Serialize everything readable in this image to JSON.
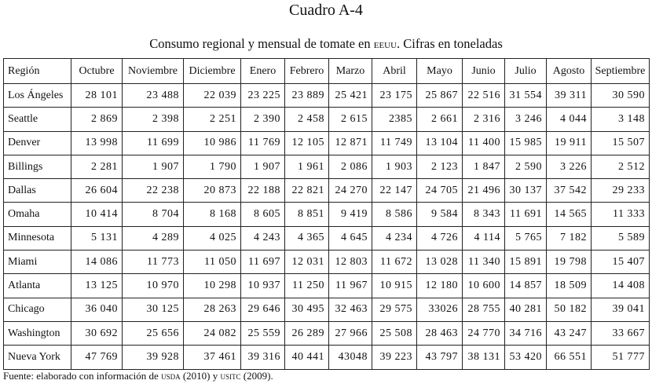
{
  "title": "Cuadro A-4",
  "subtitle": {
    "pre": "Consumo regional y mensual de tomate en ",
    "country": "EEUU",
    "post": ". Cifras en toneladas"
  },
  "table": {
    "headers": [
      "Región",
      "Octubre",
      "Noviembre",
      "Diciembre",
      "Enero",
      "Febrero",
      "Marzo",
      "Abril",
      "Mayo",
      "Junio",
      "Julio",
      "Agosto",
      "Septiembre"
    ],
    "rows": [
      [
        "Los Ángeles",
        "28 101",
        "23 488",
        "22 039",
        "23 225",
        "23 889",
        "25 421",
        "23 175",
        "25 867",
        "22 516",
        "31 554",
        "39 311",
        "30 590"
      ],
      [
        "Seattle",
        "2 869",
        "2 398",
        "2 251",
        "2 390",
        "2 458",
        "2 615",
        "2385",
        "2 661",
        "2 316",
        "3 246",
        "4 044",
        "3 148"
      ],
      [
        "Denver",
        "13 998",
        "11 699",
        "10 986",
        "11 769",
        "12 105",
        "12 871",
        "11 749",
        "13 104",
        "11 400",
        "15 985",
        "19 911",
        "15 507"
      ],
      [
        "Billings",
        "2 281",
        "1 907",
        "1 790",
        "1 907",
        "1 961",
        "2 086",
        "1 903",
        "2 123",
        "1 847",
        "2 590",
        "3 226",
        "2 512"
      ],
      [
        "Dallas",
        "26 604",
        "22 238",
        "20 873",
        "22 188",
        "22 821",
        "24 270",
        "22 147",
        "24 705",
        "21 496",
        "30 137",
        "37 542",
        "29 233"
      ],
      [
        "Omaha",
        "10 414",
        "8 704",
        "8 168",
        "8 605",
        "8 851",
        "9 419",
        "8 586",
        "9 584",
        "8 343",
        "11 691",
        "14 565",
        "11 333"
      ],
      [
        "Minnesota",
        "5 131",
        "4 289",
        "4 025",
        "4 243",
        "4 365",
        "4 645",
        "4 234",
        "4 726",
        "4 114",
        "5 765",
        "7 182",
        "5 589"
      ],
      [
        "Miami",
        "14 086",
        "11 773",
        "11 050",
        "11 697",
        "12 031",
        "12 803",
        "11 672",
        "13 028",
        "11 340",
        "15 891",
        "19 798",
        "15 407"
      ],
      [
        "Atlanta",
        "13 125",
        "10 970",
        "10 298",
        "10 937",
        "11 250",
        "11 967",
        "10 915",
        "12 180",
        "10 600",
        "14 857",
        "18 509",
        "14 408"
      ],
      [
        "Chicago",
        "36 040",
        "30 125",
        "28 263",
        "29 646",
        "30 495",
        "32 463",
        "29 575",
        "33026",
        "28 755",
        "40 281",
        "50 182",
        "39 041"
      ],
      [
        "Washington",
        "30 692",
        "25 656",
        "24 082",
        "25 559",
        "26 289",
        "27 966",
        "25 508",
        "28 463",
        "24 770",
        "34 716",
        "43 247",
        "33 667"
      ],
      [
        "Nueva York",
        "47 769",
        "39 928",
        "37 461",
        "39 316",
        "40 441",
        "43048",
        "39 223",
        "43 797",
        "38 131",
        "53 420",
        "66 551",
        "51 777"
      ]
    ]
  },
  "footer": {
    "pre": "Fuente: elaborado con información de ",
    "src1": "USDA",
    "mid": " (2010) y ",
    "src2": "USITC",
    "post": " (2009)."
  }
}
